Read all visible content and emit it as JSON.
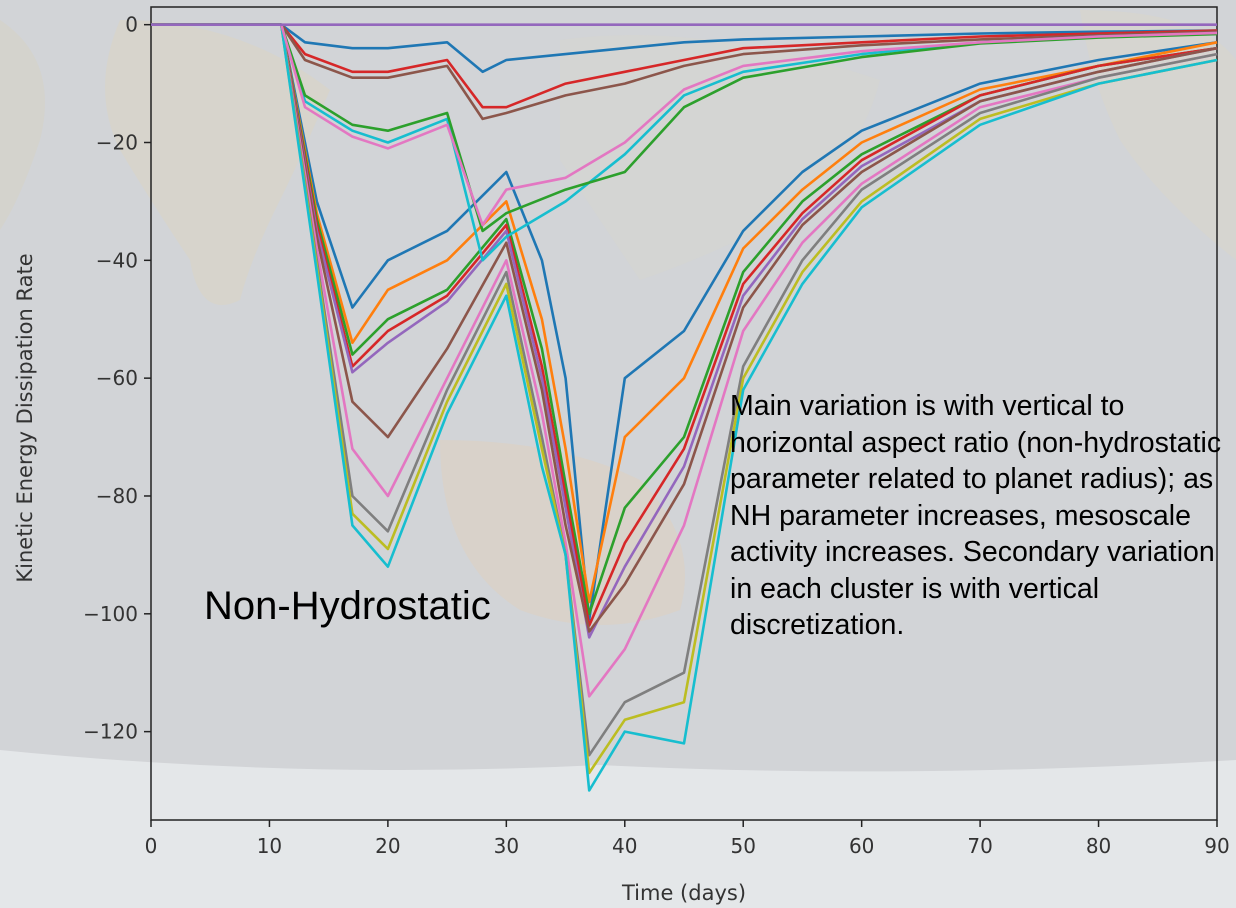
{
  "chart_data": {
    "type": "line",
    "title": "",
    "xlabel": "Time (days)",
    "ylabel": "Kinetic Energy Dissipation Rate",
    "xlim": [
      0,
      90
    ],
    "ylim": [
      -135,
      3
    ],
    "xticks": [
      0,
      10,
      20,
      30,
      40,
      50,
      60,
      70,
      80,
      90
    ],
    "yticks": [
      0,
      -20,
      -40,
      -60,
      -80,
      -100,
      -120
    ],
    "grid": false,
    "legend": "none",
    "annotations": [
      {
        "text": "Non-Hydrostatic"
      },
      {
        "text": "Main variation is with vertical to horizontal aspect ratio (non-hydrostatic parameter related to planet radius); as NH parameter increases, mesoscale activity increases. Secondary variation in each cluster is with vertical discretization."
      }
    ],
    "series": [
      {
        "color": "#1f77b4",
        "x": [
          0,
          11,
          14,
          17,
          20,
          25,
          30,
          33,
          35,
          37,
          40,
          45,
          50,
          55,
          60,
          70,
          80,
          90
        ],
        "y": [
          0,
          0,
          -30,
          -48,
          -40,
          -35,
          -25,
          -40,
          -60,
          -101,
          -60,
          -52,
          -35,
          -25,
          -18,
          -10,
          -6,
          -3
        ]
      },
      {
        "color": "#ff7f0e",
        "x": [
          0,
          11,
          14,
          17,
          20,
          25,
          30,
          33,
          35,
          37,
          40,
          45,
          50,
          55,
          60,
          70,
          80,
          90
        ],
        "y": [
          0,
          0,
          -32,
          -54,
          -45,
          -40,
          -30,
          -50,
          -72,
          -98,
          -70,
          -60,
          -38,
          -28,
          -20,
          -11,
          -7,
          -3
        ]
      },
      {
        "color": "#2ca02c",
        "x": [
          0,
          11,
          14,
          17,
          20,
          25,
          30,
          33,
          35,
          37,
          40,
          45,
          50,
          55,
          60,
          70,
          80,
          90
        ],
        "y": [
          0,
          0,
          -33,
          -56,
          -50,
          -45,
          -33,
          -55,
          -78,
          -100,
          -82,
          -70,
          -42,
          -30,
          -22,
          -12,
          -7,
          -4
        ]
      },
      {
        "color": "#d62728",
        "x": [
          0,
          11,
          14,
          17,
          20,
          25,
          30,
          33,
          35,
          37,
          40,
          45,
          50,
          55,
          60,
          70,
          80,
          90
        ],
        "y": [
          0,
          0,
          -34,
          -58,
          -52,
          -46,
          -34,
          -58,
          -80,
          -102,
          -88,
          -72,
          -44,
          -32,
          -23,
          -12,
          -7,
          -4
        ]
      },
      {
        "color": "#9467bd",
        "x": [
          0,
          11,
          14,
          17,
          20,
          25,
          30,
          33,
          35,
          37,
          40,
          45,
          50,
          55,
          60,
          70,
          80,
          90
        ],
        "y": [
          0,
          0,
          -35,
          -59,
          -54,
          -47,
          -35,
          -60,
          -82,
          -104,
          -92,
          -75,
          -46,
          -33,
          -24,
          -13,
          -8,
          -4
        ]
      },
      {
        "color": "#8c564b",
        "x": [
          0,
          11,
          14,
          17,
          20,
          25,
          30,
          33,
          35,
          37,
          40,
          45,
          50,
          55,
          60,
          70,
          80,
          90
        ],
        "y": [
          0,
          0,
          -36,
          -64,
          -70,
          -55,
          -37,
          -62,
          -85,
          -103,
          -95,
          -78,
          -48,
          -34,
          -25,
          -13,
          -8,
          -4
        ]
      },
      {
        "color": "#e377c2",
        "x": [
          0,
          11,
          14,
          17,
          20,
          25,
          30,
          33,
          35,
          37,
          40,
          45,
          50,
          55,
          60,
          70,
          80,
          90
        ],
        "y": [
          0,
          0,
          -38,
          -72,
          -80,
          -60,
          -40,
          -66,
          -88,
          -114,
          -106,
          -85,
          -52,
          -37,
          -27,
          -14,
          -9,
          -5
        ]
      },
      {
        "color": "#7f7f7f",
        "x": [
          0,
          11,
          14,
          17,
          20,
          25,
          30,
          33,
          35,
          37,
          40,
          45,
          50,
          55,
          60,
          70,
          80,
          90
        ],
        "y": [
          0,
          0,
          -40,
          -80,
          -86,
          -62,
          -42,
          -70,
          -90,
          -124,
          -115,
          -110,
          -58,
          -40,
          -28,
          -15,
          -9,
          -5
        ]
      },
      {
        "color": "#bcbd22",
        "x": [
          0,
          11,
          14,
          17,
          20,
          25,
          30,
          33,
          35,
          37,
          40,
          45,
          50,
          55,
          60,
          70,
          80,
          90
        ],
        "y": [
          0,
          0,
          -41,
          -83,
          -89,
          -64,
          -44,
          -72,
          -90,
          -127,
          -118,
          -115,
          -60,
          -42,
          -30,
          -16,
          -10,
          -6
        ]
      },
      {
        "color": "#17becf",
        "x": [
          0,
          11,
          14,
          17,
          20,
          25,
          30,
          33,
          35,
          37,
          40,
          45,
          50,
          55,
          60,
          70,
          80,
          90
        ],
        "y": [
          0,
          0,
          -42,
          -85,
          -92,
          -66,
          -46,
          -75,
          -90,
          -130,
          -120,
          -122,
          -62,
          -44,
          -31,
          -17,
          -10,
          -6
        ]
      },
      {
        "color": "#1f77b4",
        "x": [
          0,
          11,
          13,
          17,
          20,
          25,
          28,
          30,
          35,
          40,
          45,
          50,
          60,
          70,
          80,
          90
        ],
        "y": [
          0,
          0,
          -3,
          -4,
          -4,
          -3,
          -8,
          -6,
          -5,
          -4,
          -3,
          -2.5,
          -2,
          -1.5,
          -1.2,
          -1
        ]
      },
      {
        "color": "#d62728",
        "x": [
          0,
          11,
          13,
          17,
          20,
          25,
          28,
          30,
          35,
          40,
          45,
          50,
          60,
          70,
          80,
          90
        ],
        "y": [
          0,
          0,
          -5,
          -8,
          -8,
          -6,
          -14,
          -14,
          -10,
          -8,
          -6,
          -4,
          -3,
          -2,
          -1.5,
          -1
        ]
      },
      {
        "color": "#8c564b",
        "x": [
          0,
          11,
          13,
          17,
          20,
          25,
          28,
          30,
          35,
          40,
          45,
          50,
          60,
          70,
          80,
          90
        ],
        "y": [
          0,
          0,
          -6,
          -9,
          -9,
          -7,
          -16,
          -15,
          -12,
          -10,
          -7,
          -5,
          -3.5,
          -2.5,
          -1.8,
          -1.2
        ]
      },
      {
        "color": "#17becf",
        "x": [
          0,
          11,
          13,
          17,
          20,
          25,
          28,
          30,
          35,
          40,
          45,
          50,
          60,
          70,
          80,
          90
        ],
        "y": [
          0,
          0,
          -13,
          -18,
          -20,
          -16,
          -40,
          -36,
          -30,
          -22,
          -12,
          -8,
          -5,
          -3,
          -2,
          -1.5
        ]
      },
      {
        "color": "#2ca02c",
        "x": [
          0,
          11,
          13,
          17,
          20,
          25,
          28,
          30,
          35,
          40,
          45,
          50,
          60,
          70,
          80,
          90
        ],
        "y": [
          0,
          0,
          -12,
          -17,
          -18,
          -15,
          -35,
          -32,
          -28,
          -25,
          -14,
          -9,
          -5.5,
          -3.2,
          -2.2,
          -1.6
        ]
      },
      {
        "color": "#e377c2",
        "x": [
          0,
          11,
          13,
          17,
          20,
          25,
          28,
          30,
          35,
          40,
          45,
          50,
          60,
          70,
          80,
          90
        ],
        "y": [
          0,
          0,
          -14,
          -19,
          -21,
          -17,
          -34,
          -28,
          -26,
          -20,
          -11,
          -7,
          -4.5,
          -3,
          -2,
          -1.4
        ]
      },
      {
        "color": "#9467bd",
        "x": [
          0,
          11,
          13,
          17,
          20,
          25,
          28,
          30,
          35,
          40,
          45,
          50,
          60,
          70,
          80,
          90
        ],
        "y": [
          0,
          0,
          0,
          0,
          0,
          0,
          0,
          0,
          0,
          0,
          0,
          0,
          0,
          0,
          0,
          0
        ]
      }
    ]
  }
}
